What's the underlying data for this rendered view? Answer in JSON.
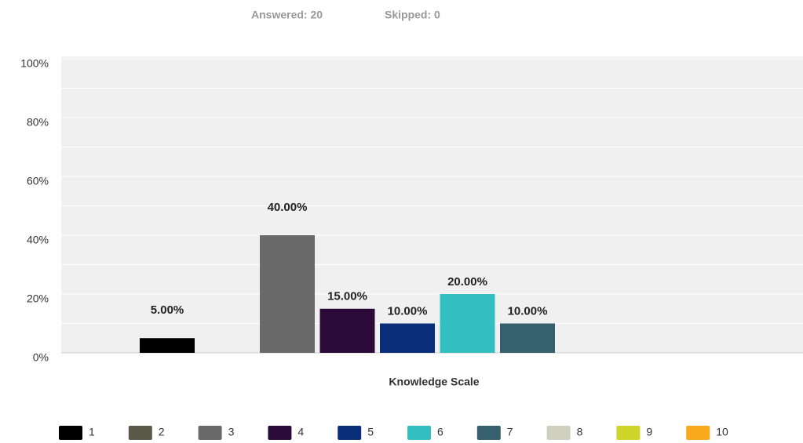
{
  "header": {
    "answered": "Answered: 20",
    "skipped": "Skipped: 0"
  },
  "chart_data": {
    "type": "bar",
    "categories": [
      "Knowledge Scale"
    ],
    "ylim": [
      0,
      100
    ],
    "yticks": [
      {
        "value": 0,
        "label": "0%"
      },
      {
        "value": 20,
        "label": "20%"
      },
      {
        "value": 40,
        "label": "40%"
      },
      {
        "value": 60,
        "label": "60%"
      },
      {
        "value": 80,
        "label": "80%"
      },
      {
        "value": 100,
        "label": "100%"
      }
    ],
    "minor_gridlines": [
      10,
      30,
      50,
      70,
      90
    ],
    "grid": true,
    "legend": "bottom",
    "series": [
      {
        "name": "1",
        "color": "#000000",
        "values": [
          5
        ],
        "value_labels": [
          "5.00%"
        ]
      },
      {
        "name": "2",
        "color": "#5b5a4a",
        "values": [
          0
        ]
      },
      {
        "name": "3",
        "color": "#6a6a6a",
        "values": [
          40
        ],
        "value_labels": [
          "40.00%"
        ]
      },
      {
        "name": "4",
        "color": "#2b0a3a",
        "values": [
          15
        ],
        "value_labels": [
          "15.00%"
        ]
      },
      {
        "name": "5",
        "color": "#0a2d7a",
        "values": [
          10
        ],
        "value_labels": [
          "10.00%"
        ]
      },
      {
        "name": "6",
        "color": "#33bfbf",
        "values": [
          20
        ],
        "value_labels": [
          "20.00%"
        ]
      },
      {
        "name": "7",
        "color": "#37606e",
        "values": [
          10
        ],
        "value_labels": [
          "10.00%"
        ]
      },
      {
        "name": "8",
        "color": "#d0cfc0",
        "values": [
          0
        ]
      },
      {
        "name": "9",
        "color": "#cfd52a",
        "values": [
          0
        ]
      },
      {
        "name": "10",
        "color": "#f7a81b",
        "values": [
          0
        ]
      }
    ]
  }
}
